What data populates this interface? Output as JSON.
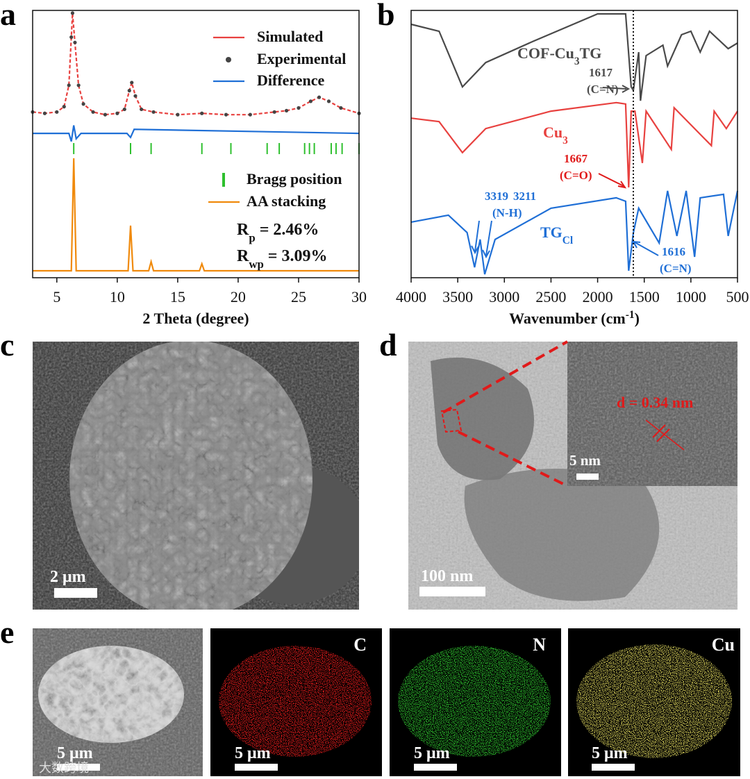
{
  "chart_data": [
    {
      "type": "line",
      "panel": "a",
      "xlabel": "2 Theta (degree)",
      "xlim": [
        3,
        30
      ],
      "xticks": [
        5,
        10,
        15,
        20,
        25,
        30
      ],
      "ylim": [
        0,
        100
      ],
      "series": [
        {
          "name": "Simulated",
          "color": "#e8413f",
          "dash": true,
          "x": [
            3,
            4,
            5,
            5.6,
            6.0,
            6.2,
            6.3,
            6.5,
            6.8,
            7.2,
            8,
            9,
            10,
            10.6,
            11.0,
            11.2,
            11.5,
            12,
            13,
            15,
            17,
            19,
            21,
            23,
            24,
            25,
            26,
            26.7,
            27.5,
            28.5,
            30
          ],
          "values": [
            62,
            61.5,
            62,
            64,
            72,
            90,
            99,
            88,
            72,
            65,
            62,
            61,
            61.5,
            63,
            70,
            73,
            68,
            63,
            62,
            61,
            61.5,
            61,
            61,
            62,
            62.5,
            63.5,
            66,
            67.5,
            66,
            63.5,
            61.5
          ]
        },
        {
          "name": "Experimental",
          "color": "#444444",
          "marker": "dot",
          "x": [
            3,
            4,
            5,
            5.6,
            6.0,
            6.2,
            6.3,
            6.5,
            6.8,
            7.2,
            8,
            9,
            10,
            10.6,
            11.0,
            11.2,
            11.5,
            12,
            13,
            15,
            17,
            19,
            21,
            23,
            24,
            25,
            26,
            26.7,
            27.5,
            28.5,
            30
          ],
          "values": [
            62,
            61.5,
            62,
            64,
            72,
            90,
            99,
            88,
            72,
            65,
            62,
            61,
            61.5,
            63,
            70,
            73,
            68,
            63,
            62,
            61,
            61.5,
            61,
            61,
            62,
            62.5,
            63.5,
            66,
            67.5,
            66,
            63.5,
            61.5
          ]
        },
        {
          "name": "Difference",
          "color": "#1f6fd6",
          "x": [
            3,
            6.0,
            6.2,
            6.4,
            6.6,
            7,
            10.8,
            11.1,
            11.4,
            30
          ],
          "values": [
            54,
            54,
            51,
            57,
            52,
            54,
            54,
            52.5,
            55.5,
            54
          ]
        },
        {
          "name": "AA stacking",
          "color": "#f08a0c",
          "x": [
            3,
            6.2,
            6.4,
            6.6,
            10.9,
            11.1,
            11.3,
            12.6,
            12.8,
            13,
            16.8,
            17,
            17.2,
            30
          ],
          "values": [
            2.6,
            2.6,
            44.7,
            2.6,
            2.6,
            19.5,
            2.6,
            2.6,
            6,
            2.6,
            2.6,
            5.2,
            2.6,
            2.6
          ]
        }
      ],
      "markers": {
        "name": "Bragg position",
        "color": "#2ec02e",
        "x": [
          6.4,
          11.1,
          12.8,
          17.0,
          19.4,
          22.4,
          23.4,
          25.5,
          25.9,
          26.3,
          27.7,
          28.1,
          28.6,
          30
        ]
      },
      "annotations": [
        {
          "parts": [
            "R",
            "p",
            " = 2.46%"
          ],
          "color": "#111111"
        },
        {
          "parts": [
            "R",
            "wp",
            " = 3.09%"
          ],
          "color": "#111111"
        }
      ]
    },
    {
      "type": "line",
      "panel": "b",
      "xlabel": {
        "parts": [
          "Wavenumber (cm",
          "-1",
          ")"
        ]
      },
      "xlim": [
        4000,
        500
      ],
      "xticks": [
        4000,
        3500,
        3000,
        2500,
        2000,
        1500,
        1000,
        500
      ],
      "ylim": [
        0,
        100
      ],
      "reference_x": 1617,
      "series": [
        {
          "color": "#4a4a4a",
          "x": [
            4000,
            3700,
            3450,
            3200,
            2700,
            2000,
            1700,
            1640,
            1617,
            1560,
            1540,
            1480,
            1300,
            1250,
            1100,
            1000,
            900,
            800,
            600,
            500
          ],
          "values": [
            94.8,
            92.2,
            71.4,
            80.5,
            88.3,
            98.7,
            98.7,
            71.4,
            70.1,
            84.4,
            66.2,
            83.1,
            87.0,
            79.2,
            90.9,
            92.2,
            84.4,
            92.2,
            85.7,
            87.8
          ]
        },
        {
          "color": "#e8413f",
          "x": [
            4000,
            3700,
            3450,
            3200,
            2500,
            1800,
            1700,
            1667,
            1640,
            1600,
            1520,
            1480,
            1210,
            1180,
            780,
            750,
            620,
            500
          ],
          "values": [
            59.7,
            58.4,
            46.8,
            55.8,
            62.3,
            65.5,
            65,
            33.8,
            62.3,
            62.3,
            42.9,
            62.3,
            48,
            63.6,
            49.4,
            62.3,
            55.8,
            62.3
          ]
        },
        {
          "color": "#1f6fd6",
          "x": [
            4000,
            3600,
            3400,
            3319,
            3260,
            3211,
            3100,
            2500,
            1800,
            1700,
            1667,
            1616,
            1560,
            1340,
            1250,
            1150,
            1050,
            960,
            900,
            650,
            600,
            500
          ],
          "values": [
            20.8,
            23.4,
            16.9,
            3.9,
            14.3,
            1.3,
            14.3,
            26,
            29.9,
            28.6,
            2.6,
            16.9,
            26,
            13,
            32.5,
            15.6,
            32.5,
            7.8,
            29.9,
            31.2,
            15.6,
            32.5
          ]
        }
      ],
      "annotations": [
        {
          "parts": [
            "COF-Cu",
            "3",
            "TG"
          ],
          "color": "#4a4a4a"
        },
        {
          "text": "1617",
          "color": "#4a4a4a"
        },
        {
          "text": "(C=N)",
          "color": "#4a4a4a"
        },
        {
          "parts": [
            "Cu",
            "3"
          ],
          "color": "#e8413f"
        },
        {
          "text": "1667",
          "color": "#e01a1a"
        },
        {
          "text": "(C=O)",
          "color": "#e01a1a"
        },
        {
          "text": "3319",
          "color": "#1f6fd6"
        },
        {
          "text": "3211",
          "color": "#1f6fd6"
        },
        {
          "text": "(N-H)",
          "color": "#1f6fd6"
        },
        {
          "parts": [
            "TG",
            "Cl"
          ],
          "color": "#1f6fd6"
        },
        {
          "text": "1616",
          "color": "#1f6fd6"
        },
        {
          "text": "(C=N)",
          "color": "#1f6fd6"
        }
      ]
    }
  ],
  "panels": {
    "a": "a",
    "b": "b",
    "c": "c",
    "d": "d",
    "e": "e"
  },
  "images": {
    "c": {
      "scale": "2 μm"
    },
    "d": {
      "scale": "100 nm",
      "inset_scale": "5 nm",
      "spacing": "d = 0.34 nm"
    },
    "e": [
      {
        "scale": "5 μm"
      },
      {
        "element": "C",
        "scale": "5 μm"
      },
      {
        "element": "N",
        "scale": "5 μm"
      },
      {
        "element": "Cu",
        "scale": "5 μm"
      }
    ],
    "watermark": "大数跨境"
  }
}
